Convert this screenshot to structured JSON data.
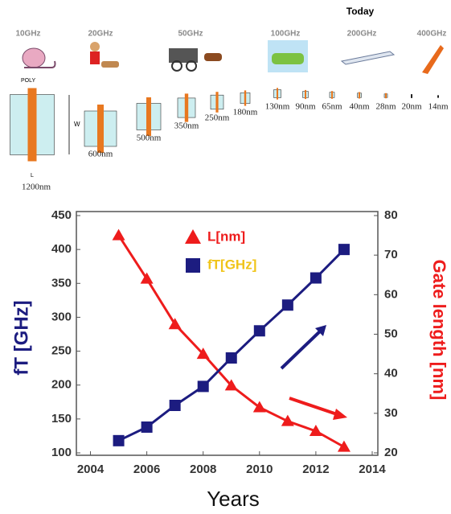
{
  "header": {
    "today": "Today",
    "frequencies": [
      "10GHz",
      "20GHz",
      "50GHz",
      "100GHz",
      "200GHz",
      "400GHz"
    ],
    "nodes": [
      "1200nm",
      "600nm",
      "500nm",
      "350nm",
      "250nm",
      "180nm",
      "130nm",
      "90nm",
      "65nm",
      "40nm",
      "28nm",
      "20nm",
      "14nm"
    ],
    "diagram_labels": [
      "POLY",
      "W",
      "L"
    ]
  },
  "chart_data": {
    "type": "line",
    "x_label": "Years",
    "y_label": "fT [GHz]",
    "y2_label": "Gate length [nm]",
    "x": [
      2005,
      2006,
      2007,
      2008,
      2009,
      2010,
      2011,
      2012,
      2013
    ],
    "xlim": [
      2003.5,
      2014.2
    ],
    "xticks": [
      2004,
      2006,
      2008,
      2010,
      2012,
      2014
    ],
    "ylim": [
      100,
      450
    ],
    "yticks": [
      100,
      150,
      200,
      250,
      300,
      350,
      400,
      450
    ],
    "y2lim": [
      20,
      80
    ],
    "y2ticks": [
      20,
      30,
      40,
      50,
      60,
      70,
      80
    ],
    "series": [
      {
        "name": "L[nm]",
        "color": "#ee1c1c",
        "marker": "triangle",
        "axis": "y2",
        "values": [
          75,
          64,
          52.5,
          45,
          37,
          31.5,
          28,
          25.5,
          21.5
        ]
      },
      {
        "name": "fT[GHz]",
        "color": "#1c1c80",
        "marker": "square",
        "values": [
          118,
          138,
          170,
          198,
          240,
          280,
          318,
          358,
          400
        ]
      }
    ]
  }
}
